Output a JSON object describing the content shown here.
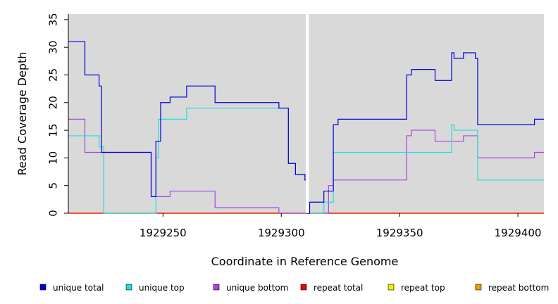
{
  "chart_data": {
    "type": "line",
    "title": "",
    "xlabel": "Coordinate in Reference Genome",
    "ylabel": "Read Coverage Depth",
    "xlim": [
      1929210,
      1929411
    ],
    "ylim": [
      0,
      36
    ],
    "x_ticks": [
      1929250,
      1929300,
      1929350,
      1929400
    ],
    "x_tick_labels": [
      "1929250",
      "1929300",
      "1929350",
      "1929400"
    ],
    "y_ticks": [
      0,
      5,
      10,
      15,
      20,
      25,
      30,
      35
    ],
    "y_tick_labels": [
      "0",
      "5",
      "10",
      "15",
      "20",
      "25",
      "30",
      "35"
    ],
    "grid": false,
    "background": "#d9d9d9",
    "gap_marker_x": 1929311,
    "gap_marker_color": "#ffffff",
    "legend_position": "bottom",
    "series": [
      {
        "name": "unique total",
        "color": "#0000dd",
        "step": [
          [
            1929210,
            31
          ],
          [
            1929217,
            25
          ],
          [
            1929223,
            23
          ],
          [
            1929224,
            11
          ],
          [
            1929245,
            3
          ],
          [
            1929247,
            13
          ],
          [
            1929249,
            20
          ],
          [
            1929253,
            21
          ],
          [
            1929260,
            23
          ],
          [
            1929272,
            20
          ],
          [
            1929299,
            19
          ],
          [
            1929303,
            9
          ],
          [
            1929306,
            7
          ],
          [
            1929310,
            6
          ],
          [
            1929311,
            0
          ],
          [
            1929312,
            2
          ],
          [
            1929318,
            4
          ],
          [
            1929322,
            16
          ],
          [
            1929324,
            17
          ],
          [
            1929353,
            25
          ],
          [
            1929355,
            26
          ],
          [
            1929365,
            24
          ],
          [
            1929372,
            29
          ],
          [
            1929373,
            28
          ],
          [
            1929377,
            29
          ],
          [
            1929382,
            28
          ],
          [
            1929383,
            16
          ],
          [
            1929407,
            17
          ],
          [
            1929411,
            17
          ]
        ]
      },
      {
        "name": "unique top",
        "color": "#22dddd",
        "step": [
          [
            1929210,
            14
          ],
          [
            1929223,
            12
          ],
          [
            1929225,
            0
          ],
          [
            1929247,
            10
          ],
          [
            1929248,
            17
          ],
          [
            1929260,
            19
          ],
          [
            1929299,
            19
          ],
          [
            1929303,
            9
          ],
          [
            1929306,
            7
          ],
          [
            1929310,
            6
          ],
          [
            1929311,
            0
          ],
          [
            1929318,
            2
          ],
          [
            1929322,
            11
          ],
          [
            1929372,
            16
          ],
          [
            1929373,
            15
          ],
          [
            1929383,
            6
          ],
          [
            1929411,
            6
          ]
        ]
      },
      {
        "name": "unique bottom",
        "color": "#aa44dd",
        "step": [
          [
            1929210,
            17
          ],
          [
            1929217,
            11
          ],
          [
            1929224,
            11
          ],
          [
            1929245,
            3
          ],
          [
            1929253,
            4
          ],
          [
            1929272,
            1
          ],
          [
            1929299,
            0
          ],
          [
            1929320,
            5
          ],
          [
            1929322,
            6
          ],
          [
            1929353,
            14
          ],
          [
            1929355,
            15
          ],
          [
            1929365,
            13
          ],
          [
            1929377,
            14
          ],
          [
            1929383,
            10
          ],
          [
            1929407,
            11
          ],
          [
            1929411,
            11
          ]
        ]
      },
      {
        "name": "repeat total",
        "color": "#ee0000",
        "step": [
          [
            1929210,
            0
          ],
          [
            1929411,
            0
          ]
        ]
      },
      {
        "name": "repeat top",
        "color": "#eeee00",
        "step": [
          [
            1929210,
            0
          ],
          [
            1929411,
            0
          ]
        ]
      },
      {
        "name": "repeat bottom",
        "color": "#ee9900",
        "step": [
          [
            1929210,
            0
          ],
          [
            1929411,
            0
          ]
        ]
      }
    ]
  }
}
